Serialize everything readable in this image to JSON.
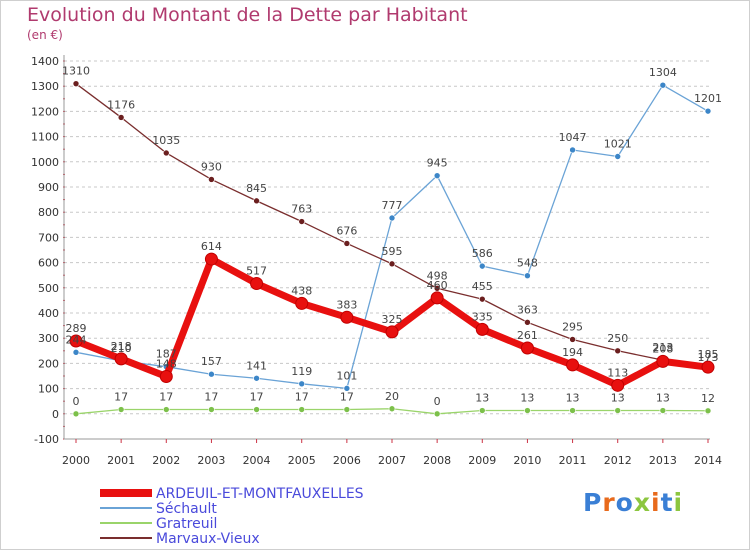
{
  "title": "Evolution du Montant de la Dette par Habitant",
  "subtitle": "(en €)",
  "brand": {
    "text": "Proxiti",
    "colors": [
      "#3a7fd5",
      "#e86a1c",
      "#3a7fd5",
      "#8cc63f",
      "#e86a1c",
      "#3a7fd5",
      "#8cc63f"
    ]
  },
  "chart_data": {
    "type": "line",
    "title": "Evolution du Montant de la Dette par Habitant",
    "ylabel": "(en €)",
    "xlabel": "",
    "x": [
      "2000",
      "2001",
      "2002",
      "2003",
      "2004",
      "2005",
      "2006",
      "2007",
      "2008",
      "2009",
      "2010",
      "2011",
      "2012",
      "2013",
      "2014"
    ],
    "ylim": [
      -100,
      1400
    ],
    "yticks": [
      -100,
      0,
      100,
      200,
      300,
      400,
      500,
      600,
      700,
      800,
      900,
      1000,
      1100,
      1200,
      1300,
      1400
    ],
    "grid": "horizontal dashed",
    "legend_position": "bottom-left",
    "series": [
      {
        "name": "ARDEUIL-ET-MONTFAUXELLES",
        "color": "#e8100f",
        "marker": "#e8100f",
        "width": 7,
        "values": [
          289,
          218,
          148,
          614,
          517,
          438,
          383,
          325,
          460,
          335,
          261,
          194,
          113,
          208,
          185
        ],
        "labels": [
          "289",
          "218",
          "148",
          "614",
          "517",
          "438",
          "383",
          "325",
          "460",
          "335",
          "261",
          "194",
          "113",
          "208",
          "185"
        ]
      },
      {
        "name": "Séchault",
        "color": "#6aa3d6",
        "marker": "#3c86c8",
        "width": 1.3,
        "values": [
          244,
          210,
          187,
          157,
          141,
          119,
          101,
          777,
          945,
          586,
          548,
          1047,
          1021,
          1304,
          1201
        ],
        "labels": [
          "244",
          "210",
          "187",
          "157",
          "141",
          "119",
          "101",
          "777",
          "945",
          "586",
          "548",
          "1047",
          "1021",
          "1304",
          "1201"
        ]
      },
      {
        "name": "Gratreuil",
        "color": "#9ad46a",
        "marker": "#7cc04a",
        "width": 1.3,
        "values": [
          0,
          17,
          17,
          17,
          17,
          17,
          17,
          20,
          0,
          13,
          13,
          13,
          13,
          13,
          12
        ],
        "labels": [
          "0",
          "17",
          "17",
          "17",
          "17",
          "17",
          "17",
          "20",
          "0",
          "13",
          "13",
          "13",
          "13",
          "13",
          "12"
        ]
      },
      {
        "name": "Marvaux-Vieux",
        "color": "#7a2e2e",
        "marker": "#6b1f1f",
        "width": 1.3,
        "values": [
          1310,
          1176,
          1035,
          930,
          845,
          763,
          676,
          595,
          498,
          455,
          363,
          295,
          250,
          213,
          173
        ],
        "labels": [
          "1310",
          "1176",
          "1035",
          "930",
          "845",
          "763",
          "676",
          "595",
          "498",
          "455",
          "363",
          "295",
          "250",
          "213",
          "173"
        ]
      }
    ]
  }
}
